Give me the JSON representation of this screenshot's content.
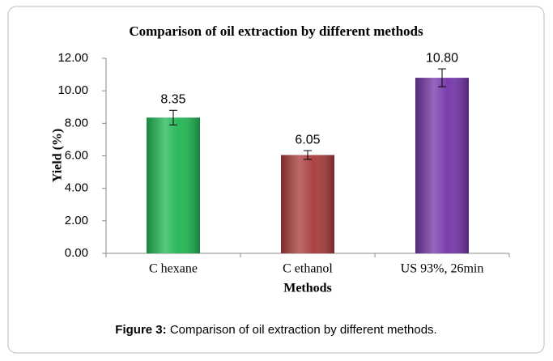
{
  "chart_data": {
    "type": "bar",
    "title": "Comparison of oil extraction by different methods",
    "x_label": "Methods",
    "y_label": "Yield (%)",
    "categories": [
      "C hexane",
      "C ethanol",
      "US 93%, 26min"
    ],
    "values": [
      8.35,
      6.05,
      10.8
    ],
    "value_labels": [
      "8.35",
      "6.05",
      "10.80"
    ],
    "errors": [
      0.45,
      0.27,
      0.55
    ],
    "colors": [
      "#1fb552",
      "#a83a3a",
      "#7434a8"
    ],
    "ylim": [
      0,
      12
    ],
    "yticks": [
      {
        "value": 0,
        "label": "0.00"
      },
      {
        "value": 2,
        "label": "2.00"
      },
      {
        "value": 4,
        "label": "4.00"
      },
      {
        "value": 6,
        "label": "6.00"
      },
      {
        "value": 8,
        "label": "8.00"
      },
      {
        "value": 10,
        "label": "10.00"
      },
      {
        "value": 12,
        "label": "12.00"
      }
    ],
    "grid": false
  },
  "caption": {
    "label": "Figure 3:",
    "text": "Comparison of oil extraction by different methods."
  }
}
